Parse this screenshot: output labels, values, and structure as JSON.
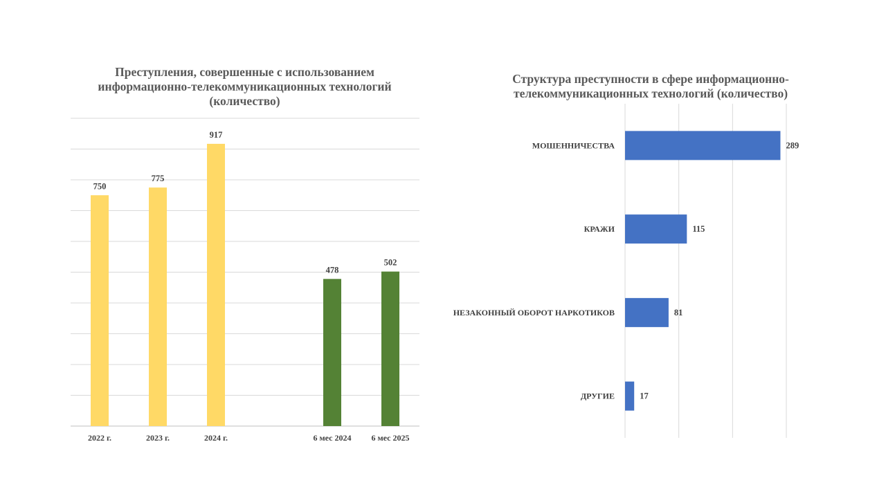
{
  "chart_data": [
    {
      "type": "bar",
      "title": "Преступления, совершенные с использованием информационно-телекоммуникационных технологий (количество)",
      "categories": [
        "2022 г.",
        "2023 г.",
        "2024 г.",
        "",
        "6 мес 2024",
        "6 мес 2025"
      ],
      "values": [
        750,
        775,
        917,
        null,
        478,
        502
      ],
      "bar_colors": [
        "#FFD966",
        "#FFD966",
        "#FFD966",
        null,
        "#548235",
        "#548235"
      ],
      "ylim": [
        0,
        1000
      ],
      "grid": true,
      "xlabel": "",
      "ylabel": ""
    },
    {
      "type": "bar",
      "orientation": "horizontal",
      "title": "Структура преступности в сфере информационно-телекоммуникационных технологий (количество)",
      "categories": [
        "МОШЕННИЧЕСТВА",
        "КРАЖИ",
        "НЕЗАКОННЫЙ  ОБОРОТ НАРКОТИКОВ",
        "ДРУГИЕ"
      ],
      "values": [
        289,
        115,
        81,
        17
      ],
      "bar_color": "#4472C4",
      "xlim": [
        0,
        300
      ],
      "grid": true,
      "xlabel": "",
      "ylabel": ""
    }
  ]
}
